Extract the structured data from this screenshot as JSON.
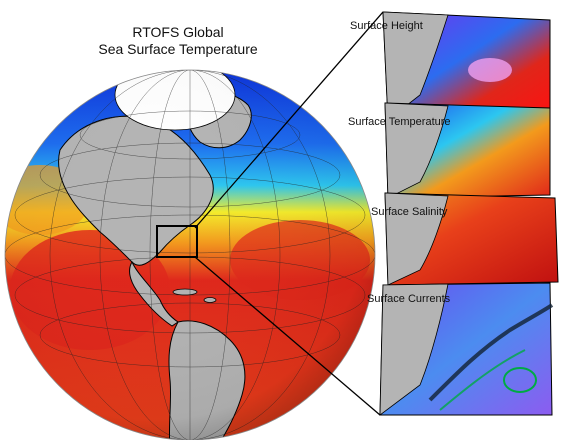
{
  "title": {
    "line1": "RTOFS Global",
    "line2": "Sea Surface Temperature"
  },
  "panels": [
    {
      "label": "Surface Height"
    },
    {
      "label": "Surface Temperature"
    },
    {
      "label": "Surface Salinity"
    },
    {
      "label": "Surface Currents"
    }
  ],
  "colors": {
    "land": "#b4b4b4",
    "cold": "#0a2ad8",
    "cool": "#2cc7f0",
    "mild": "#f4ec2a",
    "warm": "#f39a1c",
    "hot": "#e0261a",
    "ice": "#ffffff",
    "outline": "#000000"
  }
}
